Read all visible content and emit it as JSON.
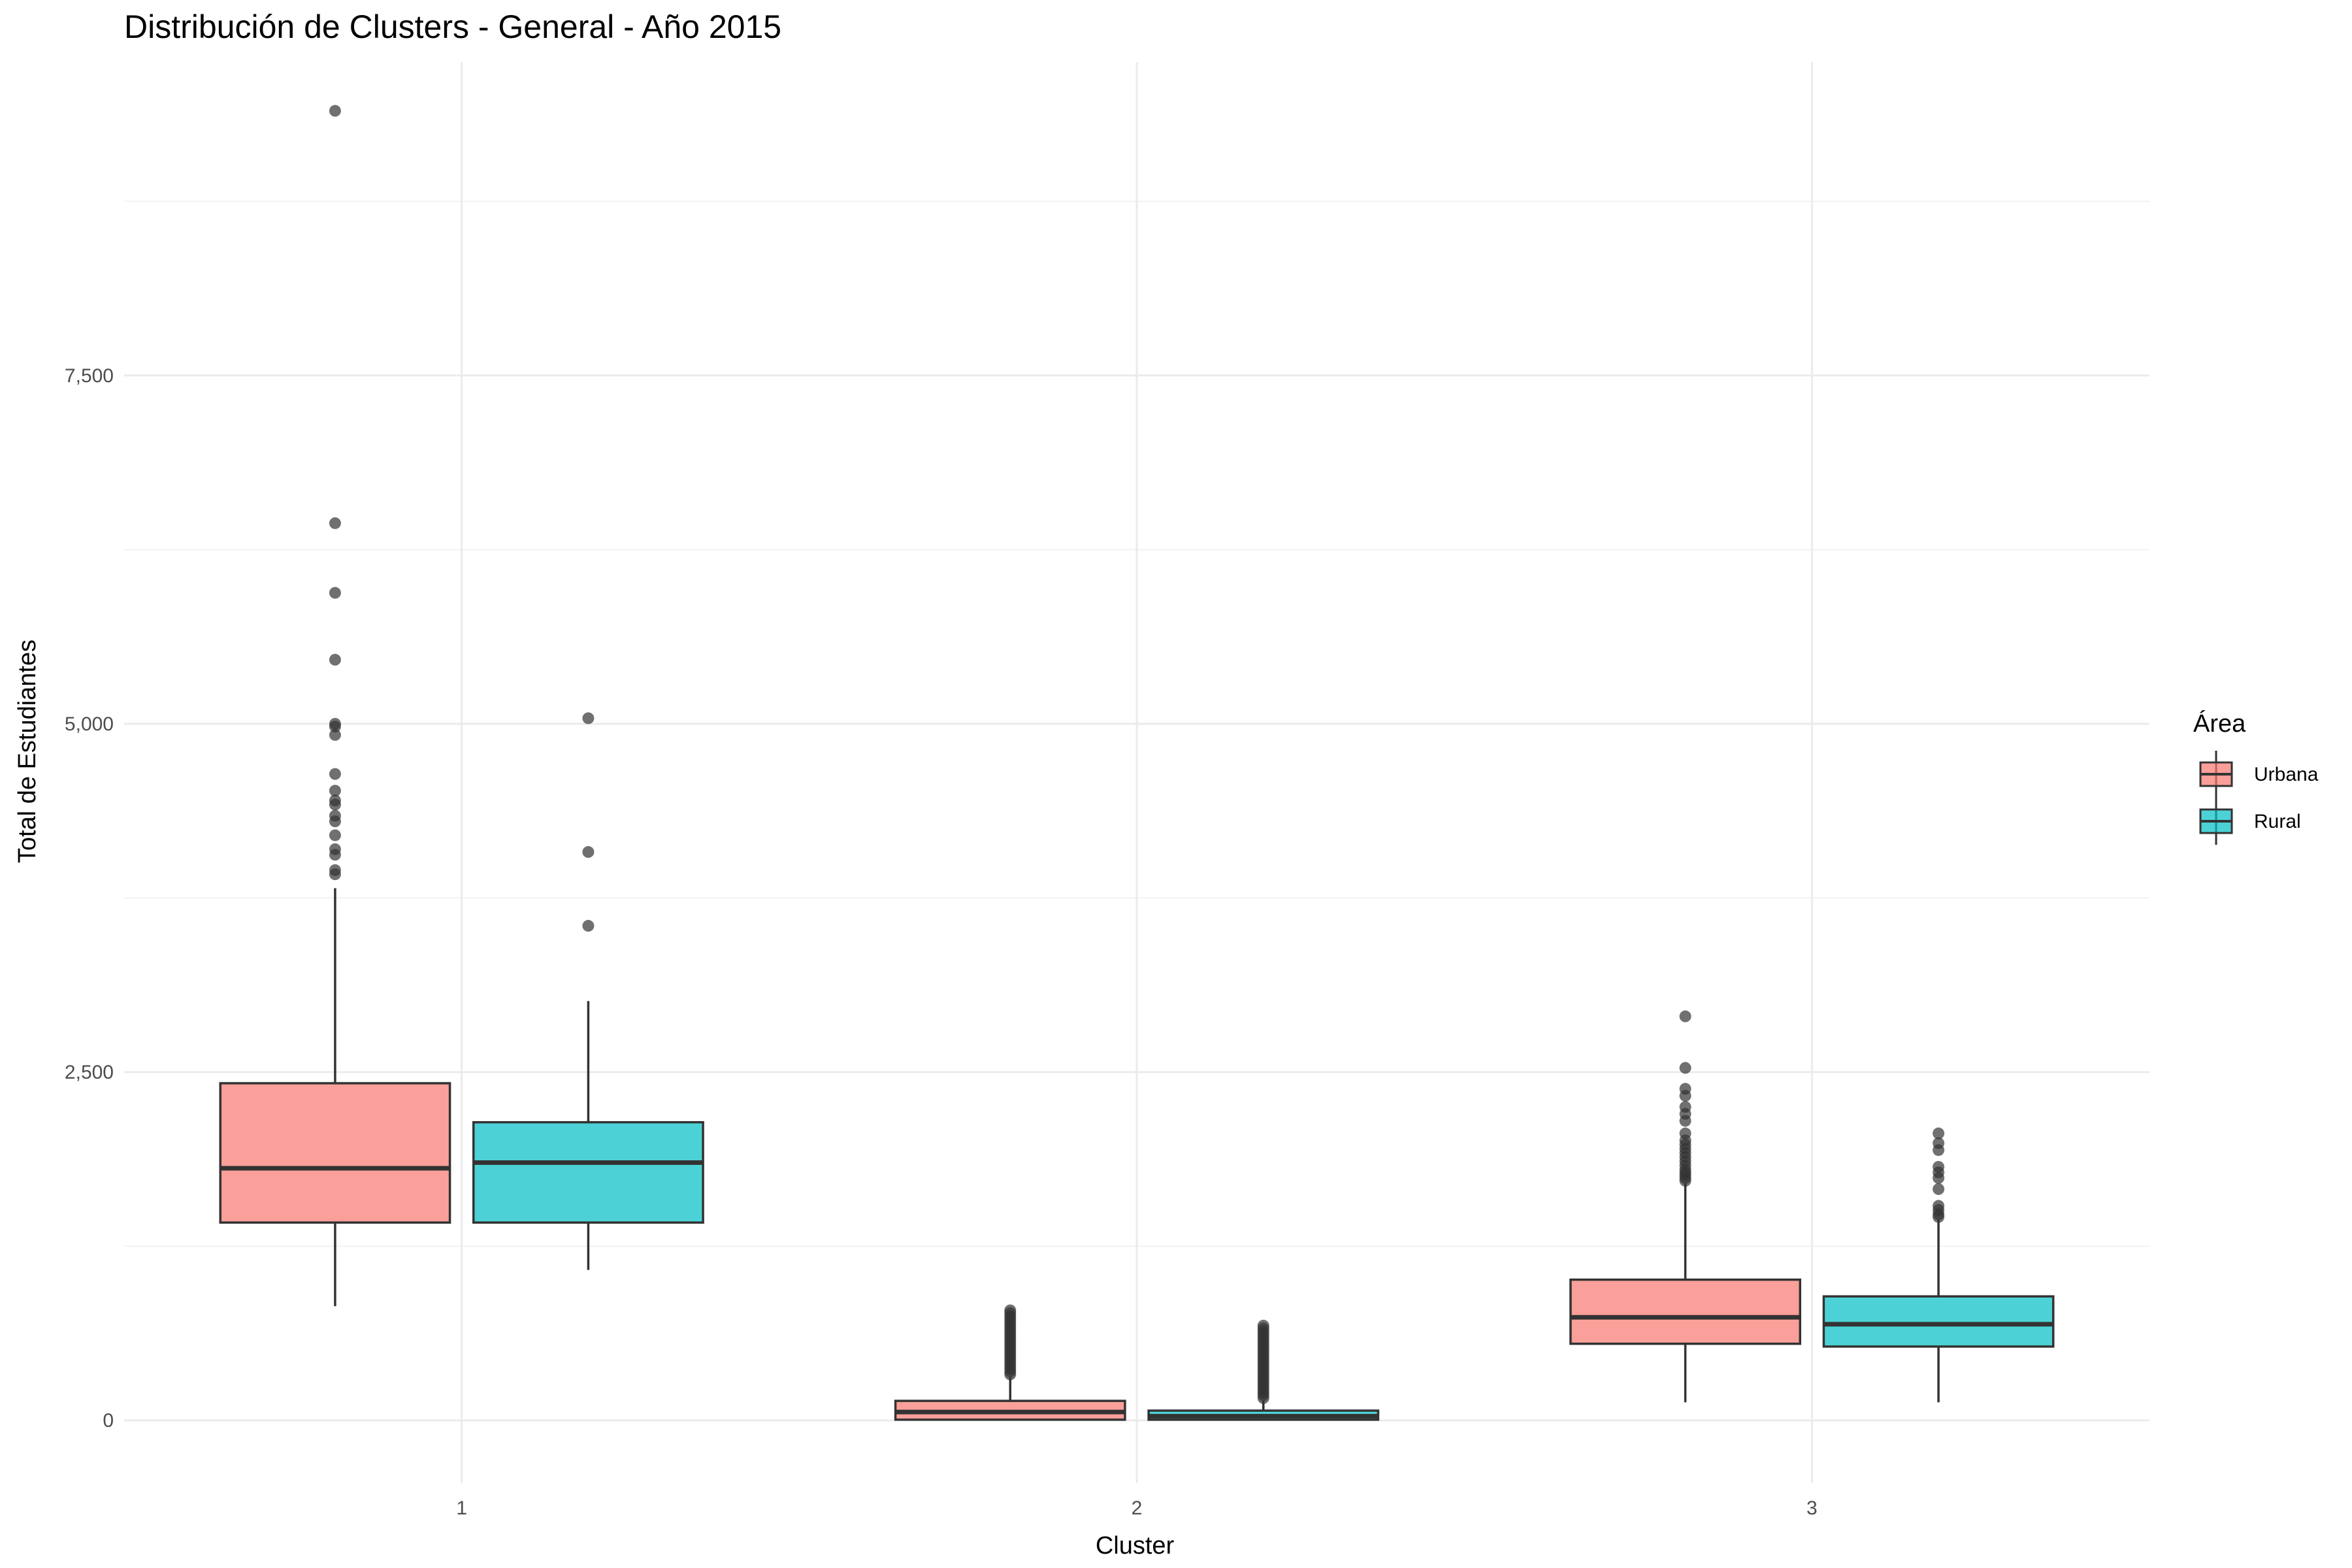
{
  "chart_data": {
    "type": "boxplot",
    "title": "Distribución de Clusters - General - Año 2015",
    "xlabel": "Cluster",
    "ylabel": "Total de Estudiantes",
    "categories": [
      "1",
      "2",
      "3"
    ],
    "y_ticks": [
      0,
      2500,
      5000,
      7500
    ],
    "y_tick_labels": [
      "0",
      "2,500",
      "5,000",
      "7,500"
    ],
    "ylim": [
      -450,
      9750
    ],
    "grid": true,
    "legend": {
      "title": "Área",
      "position": "right"
    },
    "series": [
      {
        "name": "Urbana",
        "color": "#F8766D",
        "boxes": [
          {
            "category": "1",
            "min": 820,
            "q1": 1420,
            "median": 1810,
            "q3": 2420,
            "max": 3820,
            "outliers": [
              9400,
              6440,
              5940,
              5460,
              5000,
              4980,
              4920,
              4640,
              4520,
              4450,
              4420,
              4340,
              4300,
              4200,
              4100,
              4060,
              3950,
              3920
            ]
          },
          {
            "category": "2",
            "min": 0,
            "q1": 5,
            "median": 60,
            "q3": 140,
            "max": 310,
            "outliers": [
              330,
              350,
              370,
              390,
              410,
              430,
              450,
              470,
              490,
              510,
              530,
              550,
              570,
              590,
              610,
              630,
              650,
              670,
              690,
              710,
              730,
              750,
              770,
              790
            ]
          },
          {
            "category": "3",
            "min": 130,
            "q1": 550,
            "median": 740,
            "q3": 1010,
            "max": 1700,
            "outliers": [
              2900,
              2530,
              2380,
              2330,
              2250,
              2200,
              2150,
              2060,
              2010,
              1980,
              1950,
              1920,
              1890,
              1860,
              1830,
              1800,
              1780,
              1760,
              1740,
              1720
            ]
          }
        ]
      },
      {
        "name": "Rural",
        "color": "#00BFC4",
        "boxes": [
          {
            "category": "1",
            "min": 1080,
            "q1": 1420,
            "median": 1850,
            "q3": 2140,
            "max": 3010,
            "outliers": [
              5040,
              4080,
              3550
            ]
          },
          {
            "category": "2",
            "min": 0,
            "q1": 5,
            "median": 30,
            "q3": 70,
            "max": 140,
            "outliers": [
              160,
              180,
              200,
              220,
              240,
              260,
              280,
              300,
              320,
              340,
              360,
              380,
              400,
              420,
              440,
              460,
              480,
              500,
              520,
              540,
              560,
              580,
              600,
              620,
              640,
              660,
              680
            ]
          },
          {
            "category": "3",
            "min": 130,
            "q1": 530,
            "median": 690,
            "q3": 890,
            "max": 1440,
            "outliers": [
              2060,
              1990,
              1940,
              1820,
              1780,
              1740,
              1660,
              1540,
              1510,
              1480,
              1460
            ]
          }
        ]
      }
    ]
  }
}
